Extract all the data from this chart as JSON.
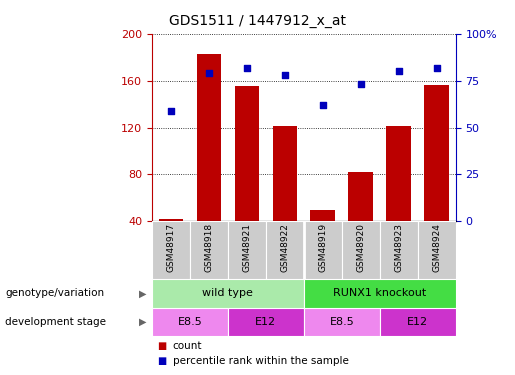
{
  "title": "GDS1511 / 1447912_x_at",
  "samples": [
    "GSM48917",
    "GSM48918",
    "GSM48921",
    "GSM48922",
    "GSM48919",
    "GSM48920",
    "GSM48923",
    "GSM48924"
  ],
  "counts": [
    42,
    183,
    155,
    121,
    50,
    82,
    121,
    156
  ],
  "percentiles": [
    59,
    79,
    82,
    78,
    62,
    73,
    80,
    82
  ],
  "ylim_left": [
    40,
    200
  ],
  "ylim_right": [
    0,
    100
  ],
  "yticks_left": [
    40,
    80,
    120,
    160,
    200
  ],
  "yticks_right": [
    0,
    25,
    50,
    75,
    100
  ],
  "bar_color": "#bb0000",
  "dot_color": "#0000bb",
  "bar_width": 0.65,
  "genotype_groups": [
    {
      "label": "wild type",
      "start": 0,
      "end": 4,
      "color": "#aaeaaa"
    },
    {
      "label": "RUNX1 knockout",
      "start": 4,
      "end": 8,
      "color": "#44dd44"
    }
  ],
  "stage_groups": [
    {
      "label": "E8.5",
      "start": 0,
      "end": 2,
      "color": "#ee88ee"
    },
    {
      "label": "E12",
      "start": 2,
      "end": 4,
      "color": "#cc33cc"
    },
    {
      "label": "E8.5",
      "start": 4,
      "end": 6,
      "color": "#ee88ee"
    },
    {
      "label": "E12",
      "start": 6,
      "end": 8,
      "color": "#cc33cc"
    }
  ],
  "legend_count_color": "#bb0000",
  "legend_pct_color": "#0000bb",
  "sample_row_color": "#cccccc",
  "right_axis_color": "#0000bb",
  "left_axis_color": "#bb0000",
  "title_fontsize": 10,
  "axis_fontsize": 8,
  "label_fontsize": 7.5,
  "sample_fontsize": 6.5,
  "row_fontsize": 8,
  "legend_fontsize": 7.5
}
